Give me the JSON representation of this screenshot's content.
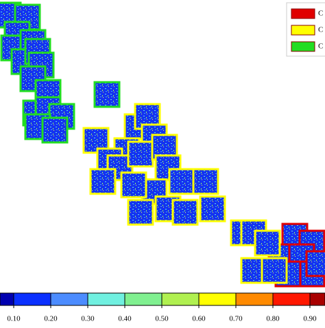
{
  "chart_data": {
    "type": "scatter",
    "xlim": [
      0,
      474
    ],
    "ylim": [
      0,
      420
    ],
    "series": [
      {
        "name": "C",
        "color": "#e00000",
        "x": [
          430,
          455,
          410,
          440,
          455,
          420,
          465
        ],
        "y": [
          75,
          65,
          45,
          45,
          20,
          20,
          35
        ]
      },
      {
        "name": "C",
        "color": "#ffff00",
        "x": [
          140,
          200,
          215,
          225,
          185,
          160,
          175,
          205,
          240,
          245,
          150,
          265,
          225,
          205,
          245,
          270,
          310,
          300,
          195,
          355,
          370,
          390,
          370,
          400
        ],
        "y": [
          215,
          235,
          250,
          220,
          200,
          185,
          175,
          195,
          205,
          175,
          155,
          155,
          140,
          110,
          115,
          110,
          115,
          155,
          150,
          80,
          80,
          65,
          25,
          25
        ]
      },
      {
        "name": "C",
        "color": "#22dd22",
        "x": [
          12,
          40,
          25,
          20,
          48,
          35,
          55,
          60,
          48,
          70,
          52,
          70,
          90,
          55,
          80,
          156
        ],
        "y": [
          398,
          395,
          370,
          350,
          358,
          330,
          345,
          325,
          305,
          285,
          255,
          260,
          250,
          235,
          230,
          282
        ]
      }
    ],
    "colorbar": {
      "bounds": [
        0,
        0.1,
        0.2,
        0.3,
        0.4,
        0.5,
        0.6,
        0.7,
        0.8,
        0.9,
        1.0
      ],
      "colors": [
        "#0000b0",
        "#0a30ff",
        "#4c8cff",
        "#70f0e0",
        "#80f090",
        "#b0f050",
        "#ffff00",
        "#ff8a00",
        "#ff1800",
        "#a80000"
      ],
      "ticks": [
        {
          "value": 0.1,
          "label": "0.10"
        },
        {
          "value": 0.2,
          "label": "0.20"
        },
        {
          "value": 0.3,
          "label": "0.30"
        },
        {
          "value": 0.4,
          "label": "0.40"
        },
        {
          "value": 0.5,
          "label": "0.50"
        },
        {
          "value": 0.6,
          "label": "0.60"
        },
        {
          "value": 0.7,
          "label": "0.70"
        },
        {
          "value": 0.8,
          "label": "0.80"
        },
        {
          "value": 0.9,
          "label": "0.90"
        }
      ]
    }
  }
}
